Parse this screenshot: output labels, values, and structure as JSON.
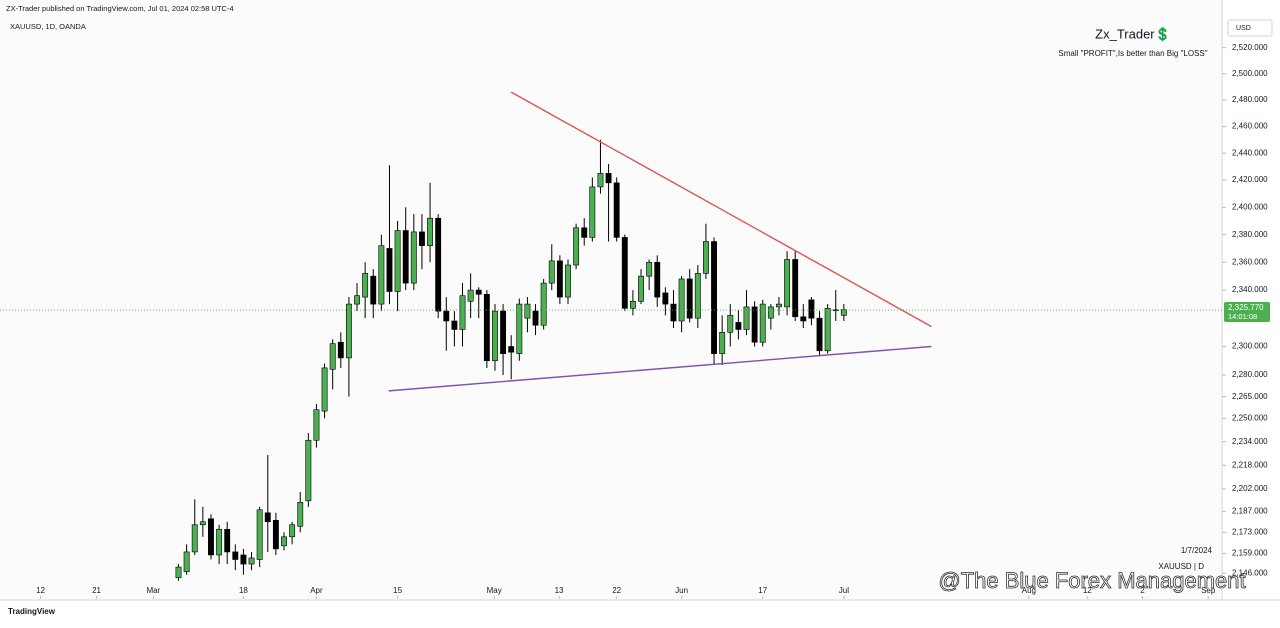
{
  "header": {
    "published": "ZX-Trader published on TradingView.com, Jul 01, 2024 02:58 UTC-4",
    "symbol": "XAUUSD, 1D, OANDA",
    "author": "Zx_Trader💲",
    "motto": "Small \"PROFIT\",Is better than Big \"LOSS\"",
    "currency": "USD"
  },
  "footer": {
    "date": "1/7/2024",
    "symbol": "XAUUSD | D",
    "watermark": "@The Blue Forex Management",
    "brand": "TradingView"
  },
  "chart_data": {
    "type": "candlestick",
    "log_scale": true,
    "grid": false,
    "up_color": "#4caf50",
    "down_color": "#000000",
    "wick_color": "#000000",
    "open": [
      2143,
      2147,
      2160,
      2178,
      2182,
      2158,
      2175,
      2160,
      2158,
      2152,
      2155,
      2186,
      2181,
      2164,
      2170,
      2177,
      2194,
      2235,
      2255,
      2284,
      2303,
      2292,
      2330,
      2335,
      2350,
      2330,
      2370,
      2339,
      2383,
      2345,
      2382,
      2372,
      2392,
      2325,
      2318,
      2312,
      2332,
      2340,
      2337,
      2290,
      2325,
      2300,
      2295,
      2320,
      2325,
      2315,
      2345,
      2361,
      2335,
      2358,
      2385,
      2378,
      2415,
      2425,
      2418,
      2378,
      2327,
      2332,
      2350,
      2360,
      2338,
      2330,
      2318,
      2348,
      2320,
      2352,
      2375,
      2295,
      2310,
      2317,
      2312,
      2328,
      2303,
      2320,
      2328,
      2328,
      2362,
      2321,
      2333,
      2320,
      2297,
      2326,
      2322
    ],
    "high": [
      2152,
      2165,
      2195,
      2190,
      2185,
      2178,
      2180,
      2165,
      2162,
      2160,
      2190,
      2225,
      2186,
      2173,
      2180,
      2200,
      2240,
      2260,
      2288,
      2305,
      2310,
      2335,
      2345,
      2360,
      2355,
      2380,
      2431,
      2390,
      2400,
      2395,
      2395,
      2418,
      2395,
      2335,
      2325,
      2345,
      2352,
      2342,
      2340,
      2330,
      2330,
      2308,
      2334,
      2335,
      2330,
      2348,
      2373,
      2365,
      2362,
      2388,
      2392,
      2422,
      2450,
      2432,
      2422,
      2380,
      2340,
      2355,
      2362,
      2365,
      2342,
      2340,
      2350,
      2355,
      2358,
      2388,
      2378,
      2322,
      2330,
      2326,
      2340,
      2332,
      2333,
      2330,
      2335,
      2368,
      2368,
      2330,
      2335,
      2325,
      2330,
      2340,
      2330
    ],
    "low": [
      2141,
      2145,
      2158,
      2170,
      2155,
      2152,
      2152,
      2148,
      2145,
      2148,
      2150,
      2160,
      2158,
      2161,
      2165,
      2173,
      2190,
      2230,
      2250,
      2270,
      2285,
      2265,
      2325,
      2320,
      2320,
      2325,
      2330,
      2325,
      2340,
      2340,
      2355,
      2360,
      2320,
      2297,
      2300,
      2300,
      2320,
      2320,
      2285,
      2283,
      2280,
      2277,
      2290,
      2310,
      2308,
      2312,
      2340,
      2330,
      2330,
      2355,
      2372,
      2375,
      2410,
      2375,
      2375,
      2325,
      2322,
      2330,
      2340,
      2328,
      2322,
      2313,
      2310,
      2317,
      2313,
      2348,
      2287,
      2287,
      2300,
      2305,
      2308,
      2300,
      2300,
      2312,
      2322,
      2322,
      2318,
      2313,
      2315,
      2293,
      2295,
      2318,
      2318
    ],
    "close": [
      2150,
      2160,
      2178,
      2180,
      2158,
      2175,
      2160,
      2155,
      2152,
      2156,
      2188,
      2180,
      2162,
      2170,
      2178,
      2193,
      2235,
      2256,
      2285,
      2302,
      2292,
      2330,
      2336,
      2352,
      2330,
      2372,
      2339,
      2383,
      2345,
      2382,
      2372,
      2392,
      2325,
      2318,
      2312,
      2336,
      2340,
      2337,
      2290,
      2325,
      2295,
      2296,
      2330,
      2330,
      2315,
      2345,
      2361,
      2335,
      2358,
      2385,
      2378,
      2415,
      2425,
      2418,
      2378,
      2327,
      2332,
      2350,
      2360,
      2335,
      2330,
      2318,
      2348,
      2320,
      2352,
      2375,
      2295,
      2310,
      2322,
      2312,
      2328,
      2303,
      2330,
      2328,
      2330,
      2362,
      2321,
      2318,
      2320,
      2297,
      2327,
      2326,
      2326
    ],
    "xlim": [
      -22,
      128.6
    ],
    "xticks": [
      {
        "value": -17,
        "label": "12"
      },
      {
        "value": -10.1,
        "label": "21"
      },
      {
        "value": -3.1,
        "label": "Mar"
      },
      {
        "value": 8,
        "label": "18"
      },
      {
        "value": 17,
        "label": "Apr"
      },
      {
        "value": 27,
        "label": "15"
      },
      {
        "value": 38.9,
        "label": "May"
      },
      {
        "value": 46.9,
        "label": "13"
      },
      {
        "value": 54,
        "label": "22"
      },
      {
        "value": 62,
        "label": "Jun"
      },
      {
        "value": 72,
        "label": "17"
      },
      {
        "value": 82,
        "label": "Jul"
      },
      {
        "value": 104.8,
        "label": "Aug"
      },
      {
        "value": 112,
        "label": "12"
      },
      {
        "value": 118.8,
        "label": "2"
      },
      {
        "value": 126.9,
        "label": "Sep"
      }
    ],
    "ylim": [
      2135,
      2557
    ],
    "yticks": [
      {
        "value": 2520,
        "label": "2,520.000"
      },
      {
        "value": 2500,
        "label": "2,500.000"
      },
      {
        "value": 2480,
        "label": "2,480.000"
      },
      {
        "value": 2460,
        "label": "2,460.000"
      },
      {
        "value": 2440,
        "label": "2,440.000"
      },
      {
        "value": 2420,
        "label": "2,420.000"
      },
      {
        "value": 2400,
        "label": "2,400.000"
      },
      {
        "value": 2380,
        "label": "2,380.000"
      },
      {
        "value": 2360,
        "label": "2,360.000"
      },
      {
        "value": 2340,
        "label": "2,340.000"
      },
      {
        "value": 2300,
        "label": "2,300.000"
      },
      {
        "value": 2280,
        "label": "2,280.000"
      },
      {
        "value": 2265,
        "label": "2,265.000"
      },
      {
        "value": 2250,
        "label": "2,250.000"
      },
      {
        "value": 2234,
        "label": "2,234.000"
      },
      {
        "value": 2218,
        "label": "2,218.000"
      },
      {
        "value": 2202,
        "label": "2,202.000"
      },
      {
        "value": 2187,
        "label": "2,187.000"
      },
      {
        "value": 2173,
        "label": "2,173.000"
      },
      {
        "value": 2159,
        "label": "2,159.000"
      },
      {
        "value": 2146,
        "label": "2,146.000"
      }
    ],
    "last_price": {
      "value": 2325.77,
      "label": "2,325.770",
      "color": "#4caf50"
    },
    "countdown": "14:01:08",
    "trend_lines": [
      {
        "color": "#e05252",
        "x": [
          41,
          92.8
        ],
        "y": [
          2486,
          2314
        ]
      },
      {
        "color": "#7e4fb6",
        "x": [
          25.9,
          92.8
        ],
        "y": [
          2269,
          2300
        ]
      }
    ]
  }
}
